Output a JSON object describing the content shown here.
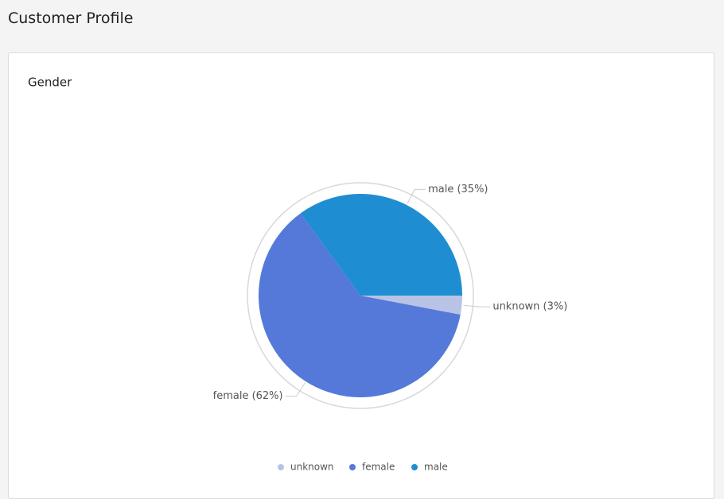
{
  "page": {
    "title": "Customer Profile"
  },
  "chart_data": {
    "type": "pie",
    "title": "Gender",
    "categories": [
      "unknown",
      "female",
      "male"
    ],
    "values": [
      3,
      62,
      35
    ],
    "value_labels": [
      "unknown (3%)",
      "female (62%)",
      "male (35%)"
    ],
    "colors": [
      "#b8c3e6",
      "#5479d9",
      "#1f8dd1"
    ],
    "legend": "bottom"
  }
}
